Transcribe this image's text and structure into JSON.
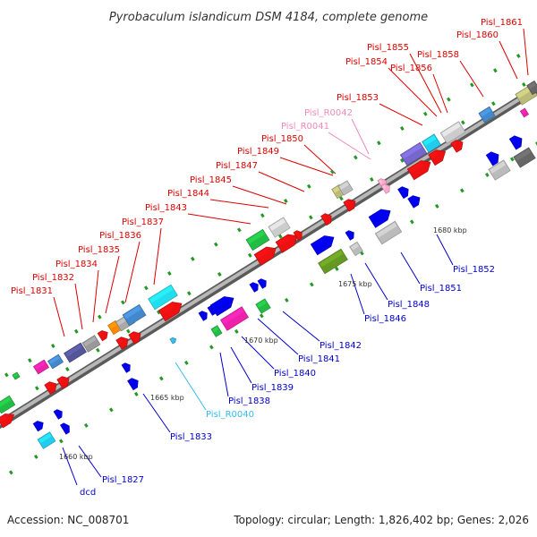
{
  "title": "Pyrobaculum islandicum DSM 4184, complete genome",
  "footer": {
    "accession": "Accession: NC_008701",
    "summary": "Topology: circular; Length: 1,826,402 bp; Genes: 2,026"
  },
  "colors": {
    "forward_label": "#dd0000",
    "reverse_label": "#0000cc",
    "rna_forward_label": "#ee88bb",
    "rna_reverse_label": "#33bbee",
    "backbone": "#8c8c8c"
  },
  "scale_labels": [
    "1660 kbp",
    "1665 kbp",
    "1670 kbp",
    "1675 kbp",
    "1680 kbp"
  ],
  "forward_labels": [
    "Pisl_1831",
    "Pisl_1832",
    "Pisl_1834",
    "Pisl_1835",
    "Pisl_1836",
    "Pisl_1837",
    "Pisl_1843",
    "Pisl_1844",
    "Pisl_1845",
    "Pisl_1847",
    "Pisl_1849",
    "Pisl_1850",
    "Pisl_R0041",
    "Pisl_R0042",
    "Pisl_1853",
    "Pisl_1854",
    "Pisl_1855",
    "Pisl_1856",
    "Pisl_1858",
    "Pisl_1860",
    "Pisl_1861"
  ],
  "reverse_labels": [
    "dcd",
    "Pisl_1827",
    "Pisl_1833",
    "Pisl_R0040",
    "Pisl_1838",
    "Pisl_1839",
    "Pisl_1840",
    "Pisl_1841",
    "Pisl_1842",
    "Pisl_1846",
    "Pisl_1848",
    "Pisl_1851",
    "Pisl_1852"
  ]
}
